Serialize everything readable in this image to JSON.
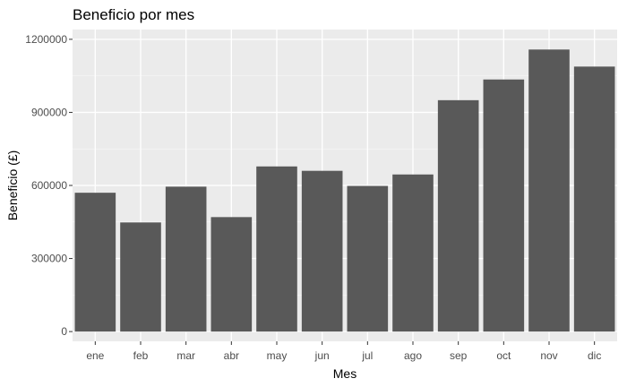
{
  "chart_data": {
    "type": "bar",
    "title": "Beneficio por mes",
    "xlabel": "Mes",
    "ylabel": "Beneficio (£)",
    "categories": [
      "ene",
      "feb",
      "mar",
      "abr",
      "may",
      "jun",
      "jul",
      "ago",
      "sep",
      "oct",
      "nov",
      "dic"
    ],
    "values": [
      570000,
      448000,
      595000,
      470000,
      678000,
      660000,
      598000,
      645000,
      950000,
      1035000,
      1158000,
      1088000
    ],
    "ylim": [
      -40000,
      1240000
    ],
    "yticks": [
      0,
      300000,
      600000,
      900000,
      1200000
    ],
    "ytick_labels": [
      "0",
      "300000",
      "600000",
      "900000",
      "1200000"
    ],
    "grid": true,
    "colors": {
      "bar": "#595959",
      "panel": "#ebebeb",
      "grid_major": "#ffffff",
      "grid_minor": "#f5f5f5"
    }
  }
}
